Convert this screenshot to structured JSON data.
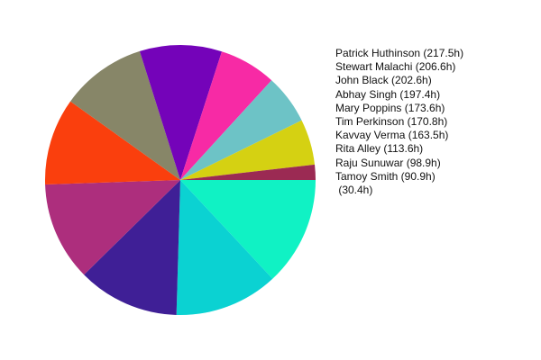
{
  "chart_data": {
    "type": "pie",
    "title": "",
    "slices": [
      {
        "label": "Patrick Huthinson (217.5h)",
        "value": 217.5,
        "color": "#10f2c4"
      },
      {
        "label": "Stewart Malachi (206.6h)",
        "value": 206.6,
        "color": "#0bd2d2"
      },
      {
        "label": "John Black (202.6h)",
        "value": 202.6,
        "color": "#3f1f96"
      },
      {
        "label": "Abhay Singh (197.4h)",
        "value": 197.4,
        "color": "#ad2e7d"
      },
      {
        "label": "Mary Poppins (173.6h)",
        "value": 173.6,
        "color": "#fa3f0d"
      },
      {
        "label": "Tim Perkinson (170.8h)",
        "value": 170.8,
        "color": "#878668"
      },
      {
        "label": "Kavvay Verma (163.5h)",
        "value": 163.5,
        "color": "#7403b9"
      },
      {
        "label": "Rita Alley (113.6h)",
        "value": 113.6,
        "color": "#f72aa5"
      },
      {
        "label": "Raju Sunuwar (98.9h)",
        "value": 98.9,
        "color": "#6dc3c6"
      },
      {
        "label": "Tamoy Smith (90.9h)",
        "value": 90.9,
        "color": "#d5d112"
      },
      {
        "label": " (30.4h)",
        "value": 30.4,
        "color": "#9b2a53"
      }
    ],
    "legend_position": "right"
  }
}
